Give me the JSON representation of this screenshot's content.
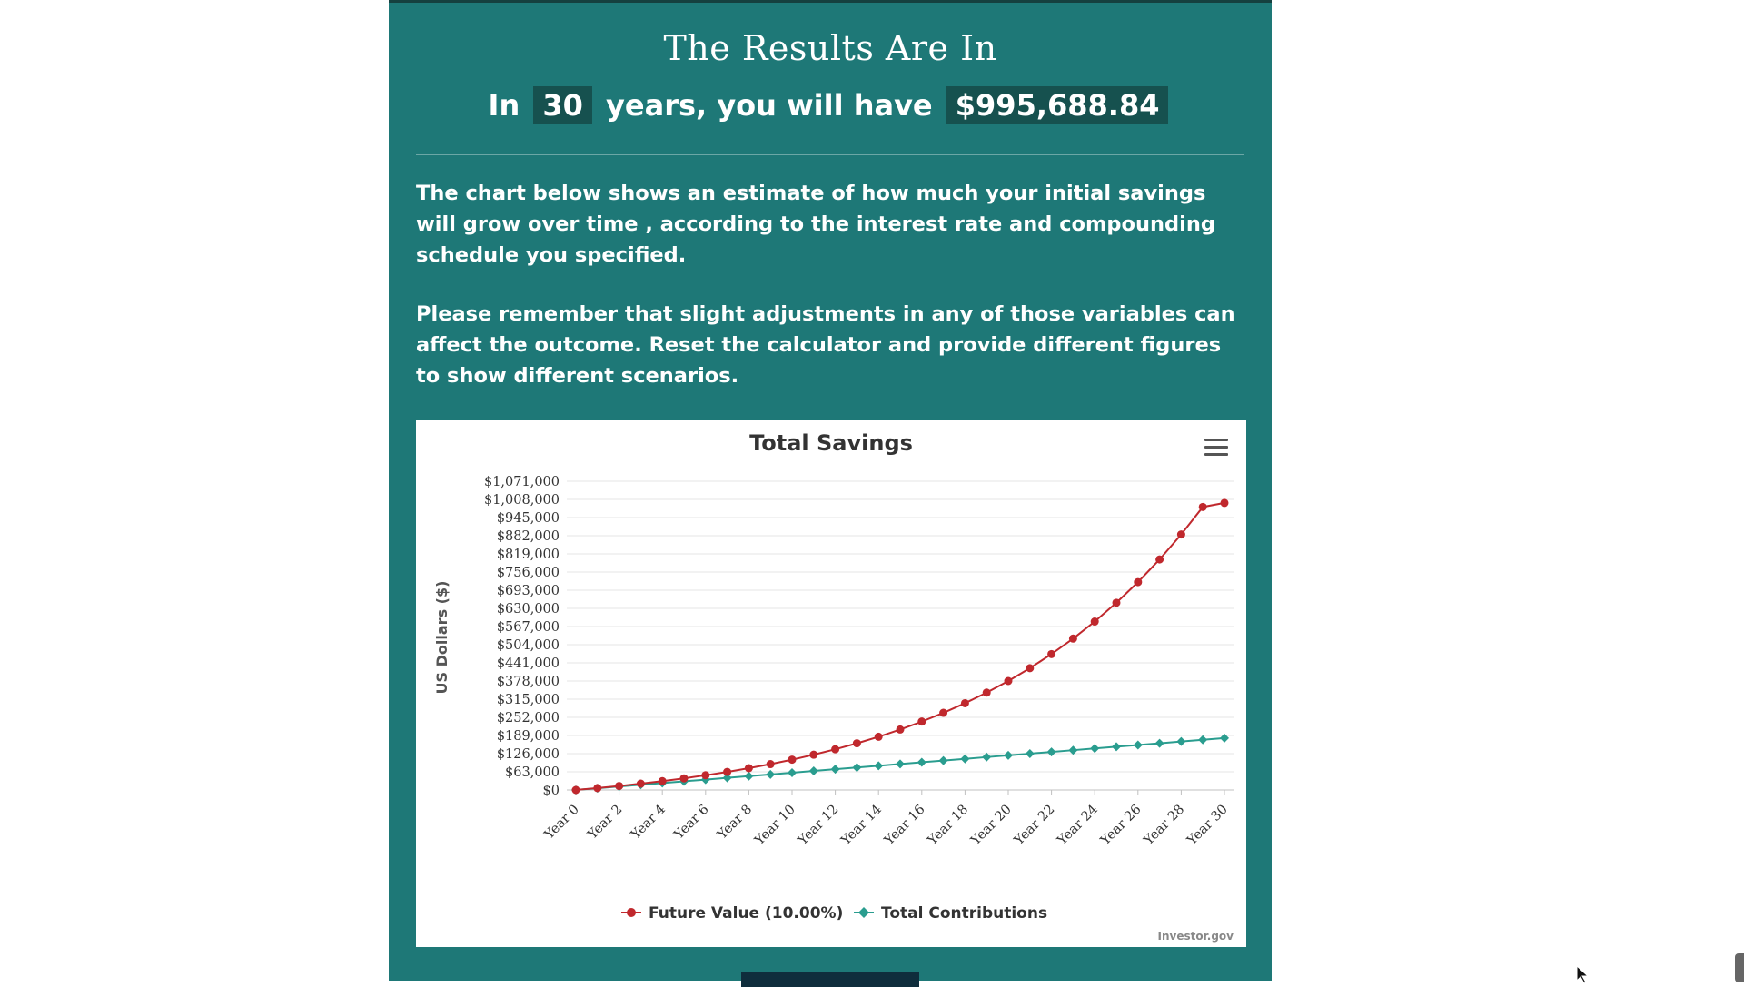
{
  "results": {
    "title": "The Results Are In",
    "summary_prefix": "In",
    "years": "30",
    "summary_middle": "years, you will have",
    "amount": "$995,688.84"
  },
  "paragraphs": [
    "The chart below shows an estimate of how much your initial savings will grow over time , according to the interest rate and compounding schedule you specified.",
    "Please remember that slight adjustments in any of those variables can affect the outcome. Reset the calculator and provide different figures to show different scenarios."
  ],
  "chart_menu_icon": "hamburger-menu-icon",
  "chart_data": {
    "type": "line",
    "title": "Total Savings",
    "ylabel": "US Dollars ($)",
    "xlabel": "",
    "credit": "Investor.gov",
    "ylim": [
      0,
      1071000
    ],
    "y_ticks": [
      "$0",
      "$63,000",
      "$126,000",
      "$189,000",
      "$252,000",
      "$315,000",
      "$378,000",
      "$441,000",
      "$504,000",
      "$567,000",
      "$630,000",
      "$693,000",
      "$756,000",
      "$819,000",
      "$882,000",
      "$945,000",
      "$1,008,000",
      "$1,071,000"
    ],
    "y_tick_values": [
      0,
      63000,
      126000,
      189000,
      252000,
      315000,
      378000,
      441000,
      504000,
      567000,
      630000,
      693000,
      756000,
      819000,
      882000,
      945000,
      1008000,
      1071000
    ],
    "x_tick_labels": [
      "Year 0",
      "Year 2",
      "Year 4",
      "Year 6",
      "Year 8",
      "Year 10",
      "Year 12",
      "Year 14",
      "Year 16",
      "Year 18",
      "Year 20",
      "Year 22",
      "Year 24",
      "Year 26",
      "Year 28",
      "Year 30"
    ],
    "x": [
      0,
      1,
      2,
      3,
      4,
      5,
      6,
      7,
      8,
      9,
      10,
      11,
      12,
      13,
      14,
      15,
      16,
      17,
      18,
      19,
      20,
      21,
      22,
      23,
      24,
      25,
      26,
      27,
      28,
      29,
      30
    ],
    "legend_position": "bottom-center",
    "grid": true,
    "series": [
      {
        "name": "Future Value (10.00%)",
        "color": "#c0282d",
        "marker": "circle",
        "values": [
          0,
          6600,
          13900,
          21900,
          30700,
          40300,
          51000,
          62700,
          75600,
          89700,
          105200,
          122400,
          141200,
          161900,
          184600,
          209700,
          237300,
          267600,
          301000,
          337700,
          378000,
          422500,
          471400,
          525100,
          584300,
          649400,
          721000,
          799700,
          886400,
          981700,
          995689
        ]
      },
      {
        "name": "Total Contributions",
        "color": "#2a9d8f",
        "marker": "diamond",
        "values": [
          0,
          6000,
          12000,
          18000,
          24000,
          30000,
          36000,
          42000,
          48000,
          54000,
          60000,
          66000,
          72000,
          78000,
          84000,
          90000,
          96000,
          102000,
          108000,
          114000,
          120000,
          126000,
          132000,
          138000,
          144000,
          150000,
          156000,
          162000,
          168000,
          174000,
          180000
        ]
      }
    ]
  }
}
